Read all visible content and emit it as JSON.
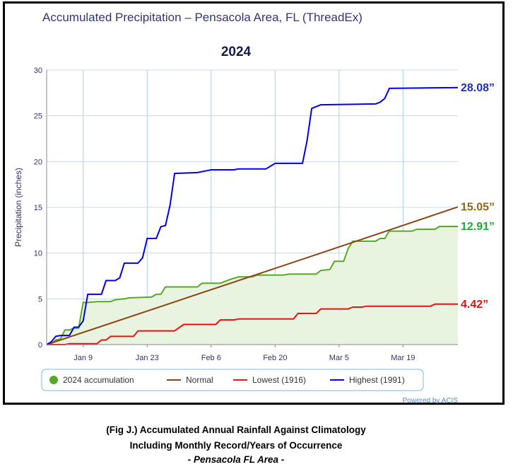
{
  "chart_data": {
    "type": "line",
    "title": "Accumulated Precipitation – Pensacola Area, FL (ThreadEx)",
    "subtitle": "2024",
    "ylabel": "Precipitation (inches)",
    "ylim": [
      0,
      30
    ],
    "yticks": [
      "0",
      "5",
      "10",
      "15",
      "20",
      "25",
      "30"
    ],
    "xlim": [
      "2024-01-01",
      "2024-03-31"
    ],
    "xticks": [
      {
        "date": "2024-01-09",
        "label": "Jan 9"
      },
      {
        "date": "2024-01-23",
        "label": "Jan 23"
      },
      {
        "date": "2024-02-06",
        "label": "Feb 6"
      },
      {
        "date": "2024-02-20",
        "label": "Feb 20"
      },
      {
        "date": "2024-03-05",
        "label": "Mar 5"
      },
      {
        "date": "2024-03-19",
        "label": "Mar 19"
      }
    ],
    "grid": true,
    "legend_position": "bottom",
    "series": [
      {
        "name": "2024 accumulation",
        "color": "#55aa22",
        "fill": "#e8f4e0",
        "marker": "circle",
        "end_label": "12.91”",
        "end_label_color": "#22a838",
        "points": [
          [
            "2024-01-01",
            0
          ],
          [
            "2024-01-02",
            0.1
          ],
          [
            "2024-01-03",
            0.5
          ],
          [
            "2024-01-04",
            0.6
          ],
          [
            "2024-01-05",
            1.6
          ],
          [
            "2024-01-06",
            1.6
          ],
          [
            "2024-01-07",
            1.8
          ],
          [
            "2024-01-08",
            1.8
          ],
          [
            "2024-01-09",
            4.6
          ],
          [
            "2024-01-10",
            4.6
          ],
          [
            "2024-01-12",
            4.7
          ],
          [
            "2024-01-15",
            4.7
          ],
          [
            "2024-01-16",
            4.9
          ],
          [
            "2024-01-18",
            5.0
          ],
          [
            "2024-01-19",
            5.1
          ],
          [
            "2024-01-24",
            5.2
          ],
          [
            "2024-01-25",
            5.5
          ],
          [
            "2024-01-26",
            5.5
          ],
          [
            "2024-01-27",
            6.3
          ],
          [
            "2024-02-03",
            6.3
          ],
          [
            "2024-02-04",
            6.7
          ],
          [
            "2024-02-08",
            6.7
          ],
          [
            "2024-02-09",
            6.9
          ],
          [
            "2024-02-10",
            7.1
          ],
          [
            "2024-02-12",
            7.4
          ],
          [
            "2024-02-15",
            7.4
          ],
          [
            "2024-02-16",
            7.6
          ],
          [
            "2024-02-22",
            7.6
          ],
          [
            "2024-02-23",
            7.7
          ],
          [
            "2024-02-29",
            7.7
          ],
          [
            "2024-03-01",
            8.1
          ],
          [
            "2024-03-03",
            8.2
          ],
          [
            "2024-03-04",
            9.1
          ],
          [
            "2024-03-06",
            9.1
          ],
          [
            "2024-03-07",
            10.5
          ],
          [
            "2024-03-08",
            11.3
          ],
          [
            "2024-03-13",
            11.3
          ],
          [
            "2024-03-14",
            11.6
          ],
          [
            "2024-03-15",
            11.6
          ],
          [
            "2024-03-16",
            12.4
          ],
          [
            "2024-03-21",
            12.4
          ],
          [
            "2024-03-22",
            12.6
          ],
          [
            "2024-03-26",
            12.6
          ],
          [
            "2024-03-27",
            12.91
          ],
          [
            "2024-03-31",
            12.91
          ]
        ]
      },
      {
        "name": "Normal",
        "color": "#8b4513",
        "end_label": "15.05”",
        "end_label_color": "#8a6a10",
        "points": [
          [
            "2024-01-01",
            0
          ],
          [
            "2024-03-01",
            10.0
          ],
          [
            "2024-03-31",
            15.05
          ]
        ]
      },
      {
        "name": "Lowest (1916)",
        "color": "#ee1111",
        "end_label": "4.42”",
        "end_label_color": "#dd1111",
        "points": [
          [
            "2024-01-01",
            0
          ],
          [
            "2024-01-05",
            0
          ],
          [
            "2024-01-06",
            0.1
          ],
          [
            "2024-01-12",
            0.1
          ],
          [
            "2024-01-13",
            0.5
          ],
          [
            "2024-01-14",
            0.5
          ],
          [
            "2024-01-15",
            0.9
          ],
          [
            "2024-01-20",
            0.9
          ],
          [
            "2024-01-21",
            1.5
          ],
          [
            "2024-01-29",
            1.5
          ],
          [
            "2024-01-31",
            2.2
          ],
          [
            "2024-02-07",
            2.2
          ],
          [
            "2024-02-08",
            2.7
          ],
          [
            "2024-02-11",
            2.7
          ],
          [
            "2024-02-12",
            2.8
          ],
          [
            "2024-02-24",
            2.8
          ],
          [
            "2024-02-25",
            3.4
          ],
          [
            "2024-02-29",
            3.4
          ],
          [
            "2024-03-01",
            3.9
          ],
          [
            "2024-03-07",
            3.9
          ],
          [
            "2024-03-08",
            4.1
          ],
          [
            "2024-03-10",
            4.1
          ],
          [
            "2024-03-11",
            4.2
          ],
          [
            "2024-03-25",
            4.2
          ],
          [
            "2024-03-26",
            4.42
          ],
          [
            "2024-03-31",
            4.42
          ]
        ]
      },
      {
        "name": "Highest (1991)",
        "color": "#0000ee",
        "end_label": "28.08”",
        "end_label_color": "#1a2fb8",
        "points": [
          [
            "2024-01-01",
            0
          ],
          [
            "2024-01-02",
            0.3
          ],
          [
            "2024-01-03",
            0.9
          ],
          [
            "2024-01-04",
            1.0
          ],
          [
            "2024-01-06",
            1.0
          ],
          [
            "2024-01-07",
            1.9
          ],
          [
            "2024-01-08",
            1.9
          ],
          [
            "2024-01-09",
            2.6
          ],
          [
            "2024-01-10",
            5.5
          ],
          [
            "2024-01-13",
            5.5
          ],
          [
            "2024-01-14",
            7.0
          ],
          [
            "2024-01-16",
            7.0
          ],
          [
            "2024-01-17",
            7.3
          ],
          [
            "2024-01-18",
            8.9
          ],
          [
            "2024-01-21",
            8.9
          ],
          [
            "2024-01-22",
            9.5
          ],
          [
            "2024-01-23",
            11.6
          ],
          [
            "2024-01-25",
            11.6
          ],
          [
            "2024-01-26",
            12.9
          ],
          [
            "2024-01-27",
            13.0
          ],
          [
            "2024-01-28",
            15.2
          ],
          [
            "2024-01-29",
            18.7
          ],
          [
            "2024-02-03",
            18.8
          ],
          [
            "2024-02-04",
            18.9
          ],
          [
            "2024-02-05",
            19.0
          ],
          [
            "2024-02-06",
            19.1
          ],
          [
            "2024-02-11",
            19.1
          ],
          [
            "2024-02-12",
            19.2
          ],
          [
            "2024-02-18",
            19.2
          ],
          [
            "2024-02-19",
            19.5
          ],
          [
            "2024-02-20",
            19.8
          ],
          [
            "2024-02-26",
            19.8
          ],
          [
            "2024-02-27",
            22.3
          ],
          [
            "2024-02-28",
            25.8
          ],
          [
            "2024-03-01",
            26.2
          ],
          [
            "2024-03-13",
            26.3
          ],
          [
            "2024-03-14",
            26.5
          ],
          [
            "2024-03-15",
            26.9
          ],
          [
            "2024-03-16",
            28.0
          ],
          [
            "2024-03-31",
            28.08
          ]
        ]
      }
    ]
  },
  "credit": "Powered by ACIS",
  "caption": {
    "line1": "(Fig J.) Accumulated Annual Rainfall Against  Climatology",
    "line2": "Including Monthly Record/Years of Occurrence",
    "line3": "- Pensacola FL Area -"
  }
}
